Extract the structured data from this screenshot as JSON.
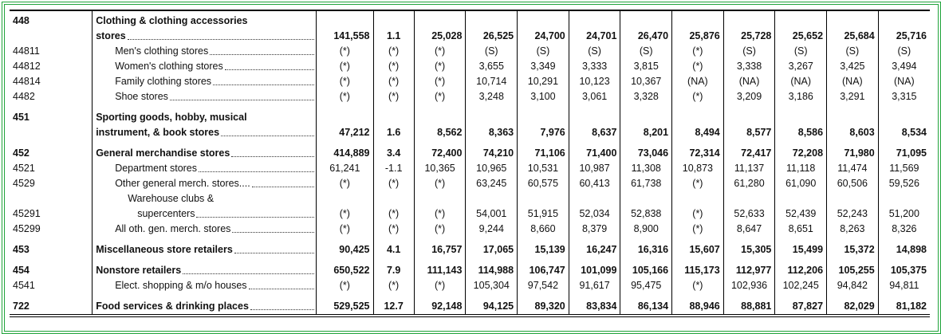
{
  "rows": [
    {
      "code": "448",
      "description": [
        "Clothing & clothing accessories",
        "stores"
      ],
      "values": [
        "141,558",
        "1.1",
        "25,028",
        "26,525",
        "24,700",
        "24,701",
        "26,470",
        "25,876",
        "25,728",
        "25,652",
        "25,684",
        "25,716"
      ]
    },
    {
      "code": "44811",
      "description": [
        "Men's clothing stores"
      ],
      "values": [
        "(*)",
        "(*)",
        "(*)",
        "(S)",
        "(S)",
        "(S)",
        "(S)",
        "(*)",
        "(S)",
        "(S)",
        "(S)",
        "(S)"
      ]
    },
    {
      "code": "44812",
      "description": [
        "Women's clothing stores"
      ],
      "values": [
        "(*)",
        "(*)",
        "(*)",
        "3,655",
        "3,349",
        "3,333",
        "3,815",
        "(*)",
        "3,338",
        "3,267",
        "3,425",
        "3,494"
      ]
    },
    {
      "code": "44814",
      "description": [
        "Family clothing stores"
      ],
      "values": [
        "(*)",
        "(*)",
        "(*)",
        "10,714",
        "10,291",
        "10,123",
        "10,367",
        "(NA)",
        "(NA)",
        "(NA)",
        "(NA)",
        "(NA)"
      ]
    },
    {
      "code": "4482",
      "description": [
        "Shoe stores"
      ],
      "values": [
        "(*)",
        "(*)",
        "(*)",
        "3,248",
        "3,100",
        "3,061",
        "3,328",
        "(*)",
        "3,209",
        "3,186",
        "3,291",
        "3,315"
      ]
    },
    {
      "code": "451",
      "description": [
        "Sporting goods, hobby, musical",
        "instrument, & book stores"
      ],
      "values": [
        "47,212",
        "1.6",
        "8,562",
        "8,363",
        "7,976",
        "8,637",
        "8,201",
        "8,494",
        "8,577",
        "8,586",
        "8,603",
        "8,534"
      ]
    },
    {
      "code": "452",
      "description": [
        "General merchandise stores"
      ],
      "values": [
        "414,889",
        "3.4",
        "72,400",
        "74,210",
        "71,106",
        "71,400",
        "73,046",
        "72,314",
        "72,417",
        "72,208",
        "71,980",
        "71,095"
      ]
    },
    {
      "code": "4521",
      "description": [
        "Department stores"
      ],
      "values": [
        "61,241",
        "-1.1",
        "10,365",
        "10,965",
        "10,531",
        "10,987",
        "11,308",
        "10,873",
        "11,137",
        "11,118",
        "11,474",
        "11,569"
      ]
    },
    {
      "code": "4529",
      "description": [
        "Other general merch. stores...."
      ],
      "values": [
        "(*)",
        "(*)",
        "(*)",
        "63,245",
        "60,575",
        "60,413",
        "61,738",
        "(*)",
        "61,280",
        "61,090",
        "60,506",
        "59,526"
      ]
    },
    {
      "code": "45291",
      "description": [
        "Warehouse clubs &",
        "supercenters"
      ],
      "values": [
        "(*)",
        "(*)",
        "(*)",
        "54,001",
        "51,915",
        "52,034",
        "52,838",
        "(*)",
        "52,633",
        "52,439",
        "52,243",
        "51,200"
      ]
    },
    {
      "code": "45299",
      "description": [
        "All oth. gen. merch. stores"
      ],
      "values": [
        "(*)",
        "(*)",
        "(*)",
        "9,244",
        "8,660",
        "8,379",
        "8,900",
        "(*)",
        "8,647",
        "8,651",
        "8,263",
        "8,326"
      ]
    },
    {
      "code": "453",
      "description": [
        "Miscellaneous store retailers"
      ],
      "values": [
        "90,425",
        "4.1",
        "16,757",
        "17,065",
        "15,139",
        "16,247",
        "16,316",
        "15,607",
        "15,305",
        "15,499",
        "15,372",
        "14,898"
      ]
    },
    {
      "code": "454",
      "description": [
        "Nonstore retailers"
      ],
      "values": [
        "650,522",
        "7.9",
        "111,143",
        "114,988",
        "106,747",
        "101,099",
        "105,166",
        "115,173",
        "112,977",
        "112,206",
        "105,255",
        "105,375"
      ]
    },
    {
      "code": "4541",
      "description": [
        "Elect. shopping & m/o houses"
      ],
      "values": [
        "(*)",
        "(*)",
        "(*)",
        "105,304",
        "97,542",
        "91,617",
        "95,475",
        "(*)",
        "102,936",
        "102,245",
        "94,842",
        "94,811"
      ]
    },
    {
      "code": "722",
      "description": [
        "Food services & drinking places"
      ],
      "values": [
        "529,525",
        "12.7",
        "92,148",
        "94,125",
        "89,320",
        "83,834",
        "86,134",
        "88,946",
        "88,881",
        "87,827",
        "82,029",
        "81,182"
      ]
    }
  ]
}
